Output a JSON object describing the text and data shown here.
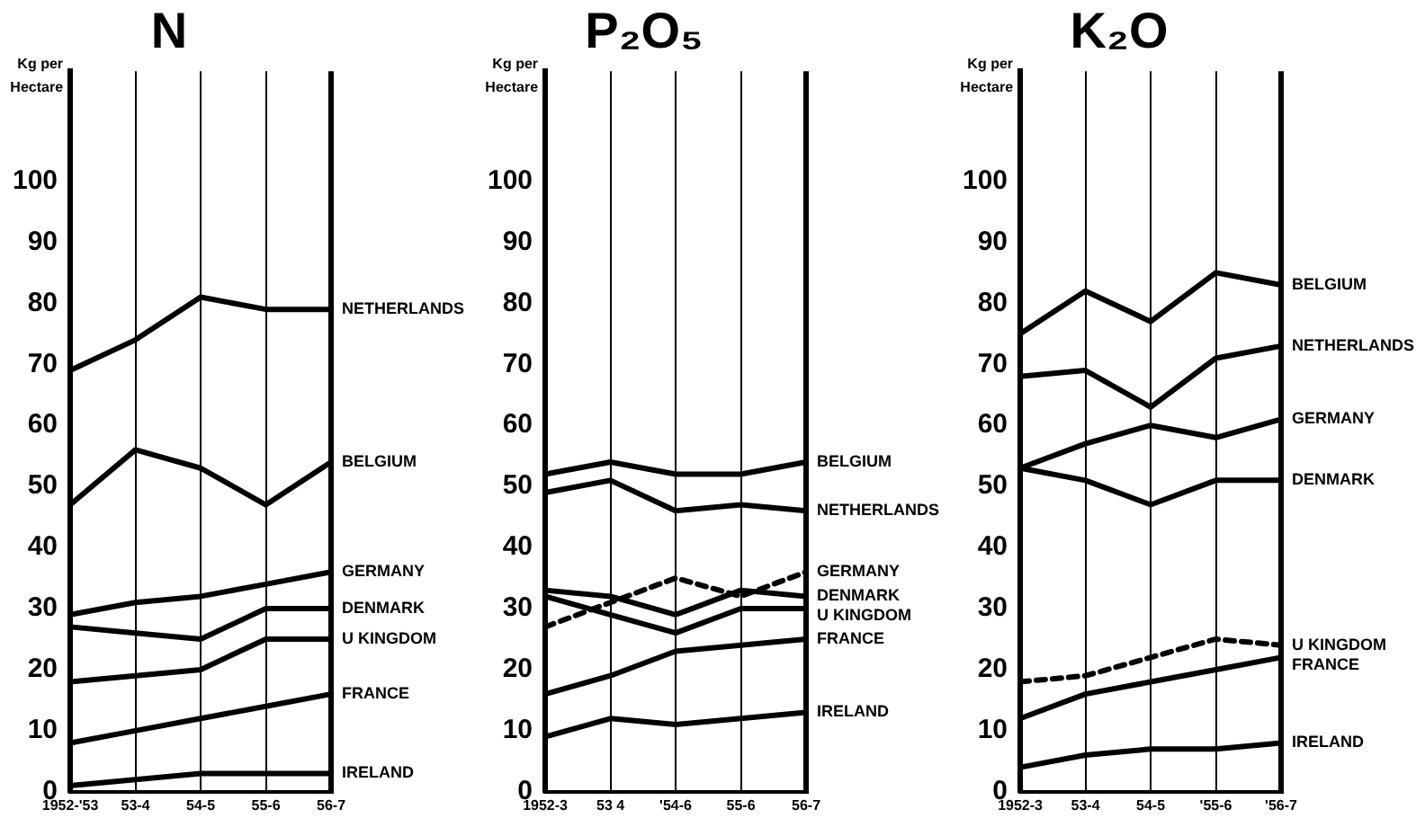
{
  "chart_data": [
    {
      "type": "line",
      "title": "N",
      "ylabel": "Kg per Hectare",
      "categories": [
        "1952-'53",
        "53-4",
        "54-5",
        "55-6",
        "56-7"
      ],
      "ylim": [
        0,
        118
      ],
      "yticks": [
        0,
        10,
        20,
        30,
        40,
        50,
        60,
        70,
        80,
        90,
        100
      ],
      "grid": "x",
      "marker": "none",
      "line_style": "solid",
      "series": [
        {
          "name": "NETHERLANDS",
          "color": "#000000",
          "values": [
            69,
            74,
            81,
            79,
            79
          ]
        },
        {
          "name": "BELGIUM",
          "color": "#000000",
          "values": [
            47,
            56,
            53,
            47,
            54
          ]
        },
        {
          "name": "GERMANY",
          "color": "#000000",
          "values": [
            29,
            31,
            32,
            34,
            36
          ]
        },
        {
          "name": "DENMARK",
          "color": "#000000",
          "values": [
            27,
            26,
            25,
            30,
            30
          ]
        },
        {
          "name": "U KINGDOM",
          "color": "#000000",
          "values": [
            18,
            19,
            20,
            25,
            25
          ]
        },
        {
          "name": "FRANCE",
          "color": "#000000",
          "values": [
            8,
            10,
            12,
            14,
            16
          ]
        },
        {
          "name": "IRELAND",
          "color": "#000000",
          "values": [
            1,
            2,
            3,
            3,
            3
          ]
        }
      ]
    },
    {
      "type": "line",
      "title": "P₂O₅",
      "ylabel": "Kg per Hectare",
      "categories": [
        "1952-3",
        "53 4",
        "'54-6",
        "55-6",
        "56-7"
      ],
      "ylim": [
        0,
        118
      ],
      "yticks": [
        0,
        10,
        20,
        30,
        40,
        50,
        60,
        70,
        80,
        90,
        100
      ],
      "grid": "x",
      "marker": "none",
      "line_style": "solid",
      "series": [
        {
          "name": "BELGIUM",
          "color": "#000000",
          "values": [
            52,
            54,
            52,
            52,
            54
          ]
        },
        {
          "name": "NETHERLANDS",
          "color": "#000000",
          "values": [
            49,
            51,
            46,
            47,
            46
          ]
        },
        {
          "name": "GERMANY",
          "color": "#000000",
          "line_style": "dashed",
          "values": [
            27,
            31,
            35,
            32,
            36
          ]
        },
        {
          "name": "DENMARK",
          "color": "#000000",
          "values": [
            33,
            32,
            29,
            33,
            32
          ]
        },
        {
          "name": "U KINGDOM",
          "color": "#000000",
          "values": [
            32,
            29,
            26,
            30,
            30
          ]
        },
        {
          "name": "FRANCE",
          "color": "#000000",
          "values": [
            16,
            19,
            23,
            24,
            25
          ]
        },
        {
          "name": "IRELAND",
          "color": "#000000",
          "values": [
            9,
            12,
            11,
            12,
            13
          ]
        }
      ]
    },
    {
      "type": "line",
      "title": "K₂O",
      "ylabel": "Kg per Hectare",
      "categories": [
        "1952-3",
        "53-4",
        "54-5",
        "'55-6",
        "'56-7"
      ],
      "ylim": [
        0,
        118
      ],
      "yticks": [
        0,
        10,
        20,
        30,
        40,
        50,
        60,
        70,
        80,
        90,
        100
      ],
      "grid": "x",
      "marker": "none",
      "line_style": "solid",
      "series": [
        {
          "name": "BELGIUM",
          "color": "#000000",
          "values": [
            75,
            82,
            77,
            85,
            83
          ]
        },
        {
          "name": "NETHERLANDS",
          "color": "#000000",
          "values": [
            68,
            69,
            63,
            71,
            73
          ]
        },
        {
          "name": "GERMANY",
          "color": "#000000",
          "values": [
            53,
            57,
            60,
            58,
            61
          ]
        },
        {
          "name": "DENMARK",
          "color": "#000000",
          "values": [
            53,
            51,
            47,
            51,
            51
          ]
        },
        {
          "name": "U KINGDOM",
          "color": "#000000",
          "line_style": "dashed",
          "values": [
            18,
            19,
            22,
            25,
            24
          ]
        },
        {
          "name": "FRANCE",
          "color": "#000000",
          "values": [
            12,
            16,
            18,
            20,
            22
          ]
        },
        {
          "name": "IRELAND",
          "color": "#000000",
          "values": [
            4,
            6,
            7,
            7,
            8
          ]
        }
      ]
    }
  ]
}
